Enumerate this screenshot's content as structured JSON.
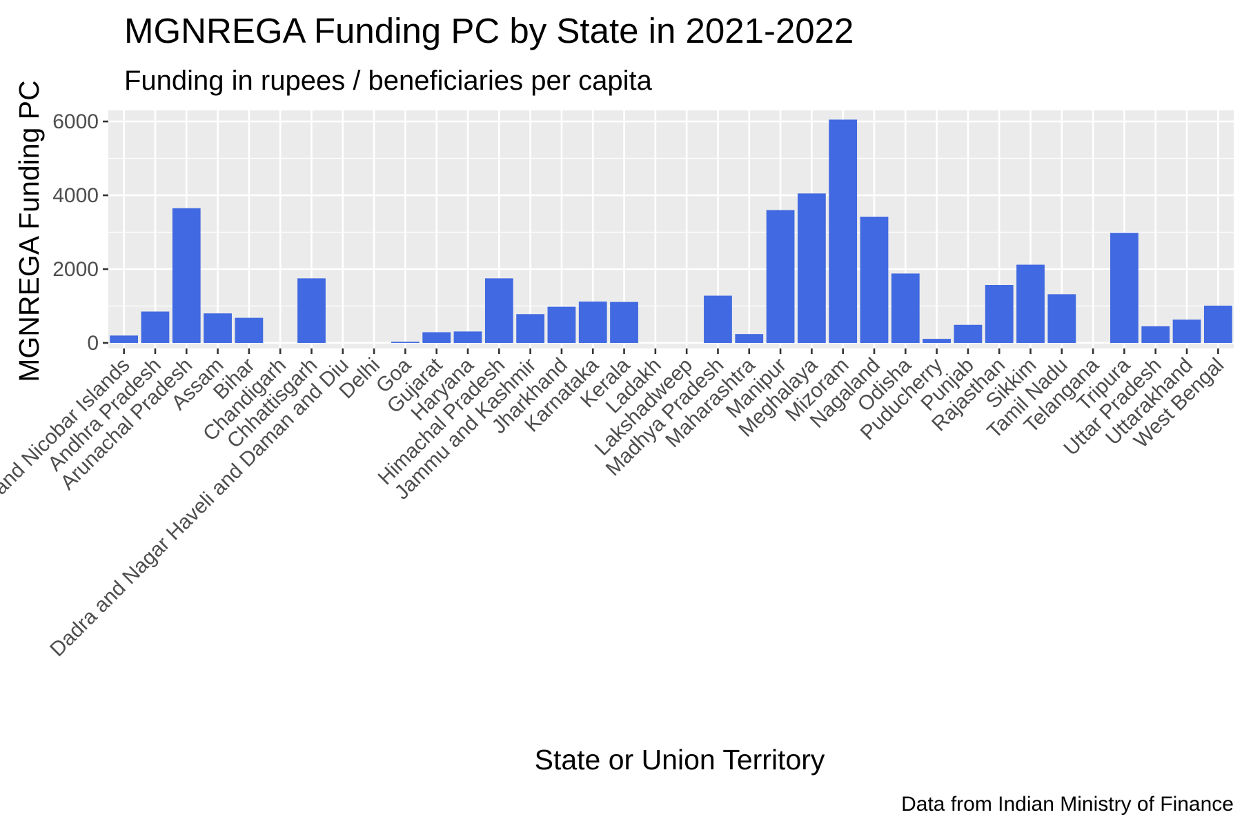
{
  "chart_data": {
    "type": "bar",
    "title": "MGNREGA Funding PC by State in 2021-2022",
    "subtitle": "Funding in rupees / beneficiaries per capita",
    "xlabel": "State or Union Territory",
    "ylabel": "MGNREGA Funding PC",
    "caption": "Data from Indian Ministry of Finance",
    "ylim": [
      -150,
      6300
    ],
    "yticks": [
      0,
      2000,
      4000,
      6000
    ],
    "grid": true,
    "bar_color": "#4169E1",
    "panel_color": "#EBEBEB",
    "categories": [
      "Andaman and Nicobar Islands",
      "Andhra Pradesh",
      "Arunachal Pradesh",
      "Assam",
      "Bihar",
      "Chandigarh",
      "Chhattisgarh",
      "Dadra and Nagar Haveli and Daman and Diu",
      "Delhi",
      "Goa",
      "Gujarat",
      "Haryana",
      "Himachal Pradesh",
      "Jammu and Kashmir",
      "Jharkhand",
      "Karnataka",
      "Kerala",
      "Ladakh",
      "Lakshadweep",
      "Madhya Pradesh",
      "Maharashtra",
      "Manipur",
      "Meghalaya",
      "Mizoram",
      "Nagaland",
      "Odisha",
      "Puducherry",
      "Punjab",
      "Rajasthan",
      "Sikkim",
      "Tamil Nadu",
      "Telangana",
      "Tripura",
      "Uttar Pradesh",
      "Uttarakhand",
      "West Bengal"
    ],
    "values": [
      200,
      850,
      3650,
      800,
      680,
      0,
      1750,
      0,
      0,
      30,
      290,
      310,
      1750,
      780,
      980,
      1120,
      1110,
      0,
      0,
      1280,
      240,
      3600,
      4050,
      6050,
      3420,
      1880,
      110,
      490,
      1570,
      2120,
      1320,
      0,
      2980,
      450,
      630,
      1010
    ]
  }
}
